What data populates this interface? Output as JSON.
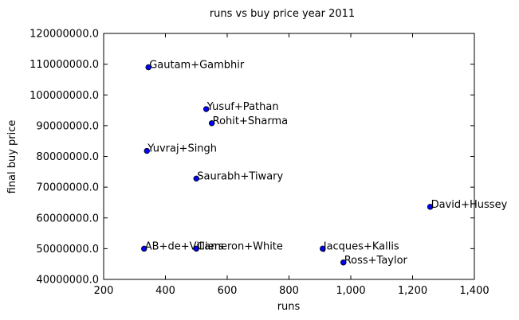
{
  "chart_data": {
    "type": "scatter",
    "title": "runs vs buy price year 2011",
    "xlabel": "runs",
    "ylabel": "final buy price",
    "xlim": [
      200,
      1400
    ],
    "ylim": [
      40000000,
      120000000
    ],
    "xticks": [
      200,
      400,
      600,
      800,
      1000,
      1200,
      1400
    ],
    "xtick_labels": [
      "200",
      "400",
      "600",
      "800",
      "1,000",
      "1,200",
      "1,400"
    ],
    "yticks": [
      40000000,
      50000000,
      60000000,
      70000000,
      80000000,
      90000000,
      100000000,
      110000000,
      120000000
    ],
    "ytick_labels": [
      "40000000.0",
      "50000000.0",
      "60000000.0",
      "70000000.0",
      "80000000.0",
      "90000000.0",
      "100000000.0",
      "110000000.0",
      "120000000.0"
    ],
    "grid": false,
    "marker_color": "#0000ff",
    "points": [
      {
        "label": "Gautam+Gambhir",
        "x": 345,
        "y": 109000000
      },
      {
        "label": "Yusuf+Pathan",
        "x": 532,
        "y": 95400000
      },
      {
        "label": "Rohit+Sharma",
        "x": 550,
        "y": 90800000
      },
      {
        "label": "Yuvraj+Singh",
        "x": 340,
        "y": 81800000
      },
      {
        "label": "Saurabh+Tiwary",
        "x": 500,
        "y": 72800000
      },
      {
        "label": "David+Hussey",
        "x": 1257,
        "y": 63600000
      },
      {
        "label": "AB+de+Villiers",
        "x": 331,
        "y": 50000000
      },
      {
        "label": "Cameron+White",
        "x": 500,
        "y": 50000000
      },
      {
        "label": "Jacques+Kallis",
        "x": 909,
        "y": 50000000
      },
      {
        "label": "Ross+Taylor",
        "x": 976,
        "y": 45500000
      }
    ]
  }
}
